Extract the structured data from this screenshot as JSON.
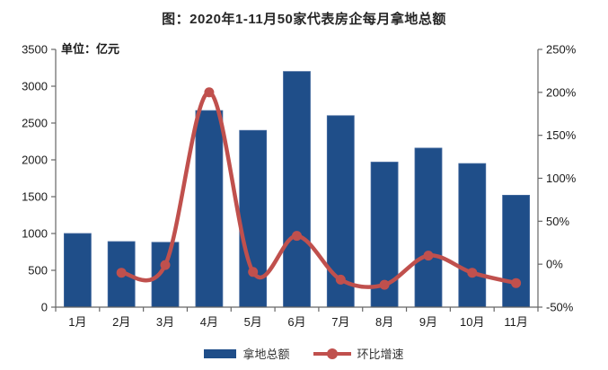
{
  "title": "图：2020年1-11月50家代表房企每月拿地总额",
  "unit_label": "单位：亿元",
  "legend": [
    {
      "label": "拿地总额",
      "swatch": "bar-swatch"
    },
    {
      "label": "环比增速",
      "swatch": "line-with-dot-swatch"
    }
  ],
  "colors": {
    "bar": "#1F4E89",
    "bar_border": "#44699E",
    "line": "#C0504D",
    "axis": "#666666",
    "text": "#1A1A1A",
    "title": "#262626"
  },
  "chart_data": {
    "type": "bar",
    "subtype": "combo-bar-line-dual-axis",
    "title": "图：2020年1-11月50家代表房企每月拿地总额",
    "categories": [
      "1月",
      "2月",
      "3月",
      "4月",
      "5月",
      "6月",
      "7月",
      "8月",
      "9月",
      "10月",
      "11月"
    ],
    "series": [
      {
        "name": "拿地总额",
        "type": "bar",
        "axis": "left",
        "unit": "亿元",
        "values": [
          1000,
          890,
          880,
          2670,
          2400,
          3200,
          2600,
          1970,
          2160,
          1950,
          1520
        ]
      },
      {
        "name": "环比增速",
        "type": "line",
        "axis": "right",
        "unit": "%",
        "smooth": true,
        "values": [
          null,
          -10,
          -1,
          200,
          -9,
          33,
          -18,
          -24,
          10,
          -10,
          -22
        ]
      }
    ],
    "left_axis": {
      "label": "单位：亿元",
      "min": 0,
      "max": 3500,
      "step": 500,
      "tick_labels": [
        "0",
        "500",
        "1000",
        "1500",
        "2000",
        "2500",
        "3000",
        "3500"
      ]
    },
    "right_axis": {
      "min": -50,
      "max": 250,
      "step": 50,
      "tick_labels": [
        "-50%",
        "0%",
        "50%",
        "100%",
        "150%",
        "200%",
        "250%"
      ]
    },
    "grid": false,
    "legend_position": "bottom"
  }
}
